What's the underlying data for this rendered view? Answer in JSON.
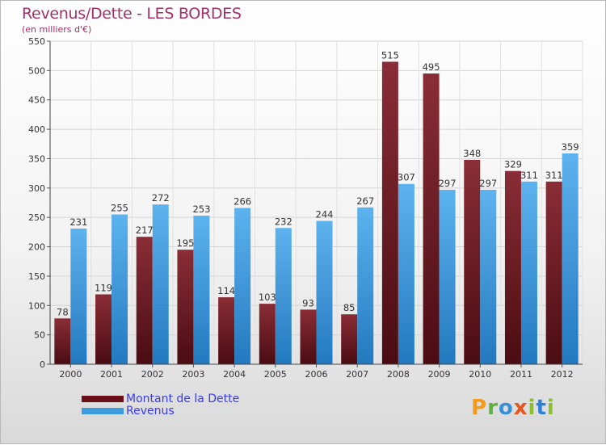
{
  "title": "Revenus/Dette - LES BORDES",
  "subtitle": "(en milliers d'€)",
  "logo_text": "Proxiti",
  "colors": {
    "debt_top": "#8a2d36",
    "debt_bottom": "#4a0c12",
    "revenue_top": "#5db3ee",
    "revenue_bottom": "#2379bf",
    "title": "#a3306b",
    "legend_text": "#3a3aee"
  },
  "legend": [
    {
      "label": "Montant de la Dette",
      "color": "#6b0f18"
    },
    {
      "label": "Revenus",
      "color": "#3d9be0"
    }
  ],
  "chart_data": {
    "type": "bar",
    "categories": [
      "2000",
      "2001",
      "2002",
      "2003",
      "2004",
      "2005",
      "2006",
      "2007",
      "2008",
      "2009",
      "2010",
      "2011",
      "2012"
    ],
    "series": [
      {
        "name": "Montant de la Dette",
        "values": [
          78,
          119,
          217,
          195,
          114,
          103,
          93,
          85,
          515,
          495,
          348,
          329,
          311
        ]
      },
      {
        "name": "Revenus",
        "values": [
          231,
          255,
          272,
          253,
          266,
          232,
          244,
          267,
          307,
          297,
          297,
          311,
          359
        ]
      }
    ],
    "ylim": [
      0,
      550
    ],
    "yticks": [
      0,
      50,
      100,
      150,
      200,
      250,
      300,
      350,
      400,
      450,
      500,
      550
    ],
    "grid": true,
    "legend_position": "bottom-left"
  }
}
